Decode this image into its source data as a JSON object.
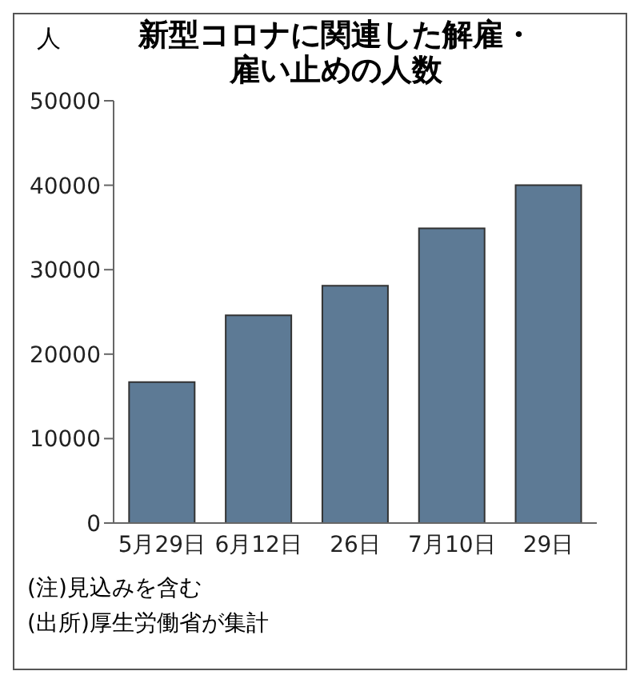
{
  "chart_data": {
    "type": "bar",
    "title": "新型コロナに関連した解雇・雇い止めの人数",
    "ylabel": "人",
    "categories": [
      "5月29日",
      "6月12日",
      "26日",
      "7月10日",
      "29日"
    ],
    "values": [
      16700,
      24600,
      28100,
      34900,
      40000
    ],
    "color": "#5d7a95",
    "ylim": [
      0,
      50000
    ],
    "yticks": [
      0,
      10000,
      20000,
      30000,
      40000,
      50000
    ],
    "grid": false,
    "annotations": [
      "(注)見込みを含む",
      "(出所)厚生労働省が集計"
    ]
  }
}
